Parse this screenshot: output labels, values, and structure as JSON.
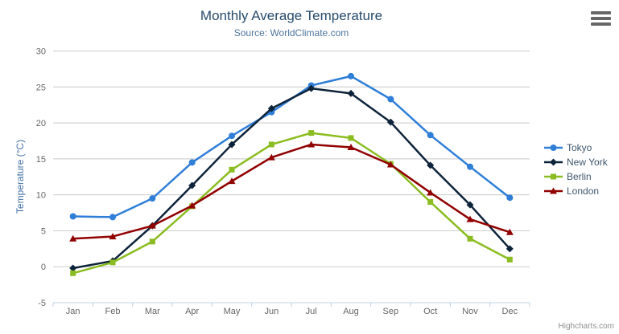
{
  "header": {
    "title": "Monthly Average Temperature",
    "subtitle": "Source: WorldClimate.com"
  },
  "context_menu": {
    "icon": "hamburger-icon"
  },
  "credits": {
    "label": "Highcharts.com"
  },
  "colors": {
    "title_text": "#274b6d",
    "subtitle_text": "#4d759e",
    "axis_title_text": "#4572a7",
    "tick_label_text": "#666666",
    "grid_line": "#c9c9c9",
    "x_axis_line": "#c0d0e0",
    "legend_text": "#3e576f"
  },
  "chart_data": {
    "type": "line",
    "title": "Monthly Average Temperature",
    "subtitle": "Source: WorldClimate.com",
    "categories": [
      "Jan",
      "Feb",
      "Mar",
      "Apr",
      "May",
      "Jun",
      "Jul",
      "Aug",
      "Sep",
      "Oct",
      "Nov",
      "Dec"
    ],
    "series": [
      {
        "name": "Tokyo",
        "color": "#2f7ed8",
        "marker": "circle",
        "values": [
          7.0,
          6.9,
          9.5,
          14.5,
          18.2,
          21.5,
          25.2,
          26.5,
          23.3,
          18.3,
          13.9,
          9.6
        ]
      },
      {
        "name": "New York",
        "color": "#0d233a",
        "marker": "diamond",
        "values": [
          -0.2,
          0.8,
          5.7,
          11.3,
          17.0,
          22.0,
          24.8,
          24.1,
          20.1,
          14.1,
          8.6,
          2.5
        ]
      },
      {
        "name": "Berlin",
        "color": "#8bbc21",
        "marker": "square",
        "values": [
          -0.9,
          0.6,
          3.5,
          8.4,
          13.5,
          17.0,
          18.6,
          17.9,
          14.3,
          9.0,
          3.9,
          1.0
        ]
      },
      {
        "name": "London",
        "color": "#910000",
        "marker": "triangle",
        "values": [
          3.9,
          4.2,
          5.7,
          8.5,
          11.9,
          15.2,
          17.0,
          16.6,
          14.2,
          10.3,
          6.6,
          4.8
        ]
      }
    ],
    "xlabel": "",
    "ylabel": "Temperature (°C)",
    "ylim": [
      -5,
      30
    ],
    "ytick_interval": 5,
    "grid": true,
    "legend_position": "right"
  }
}
